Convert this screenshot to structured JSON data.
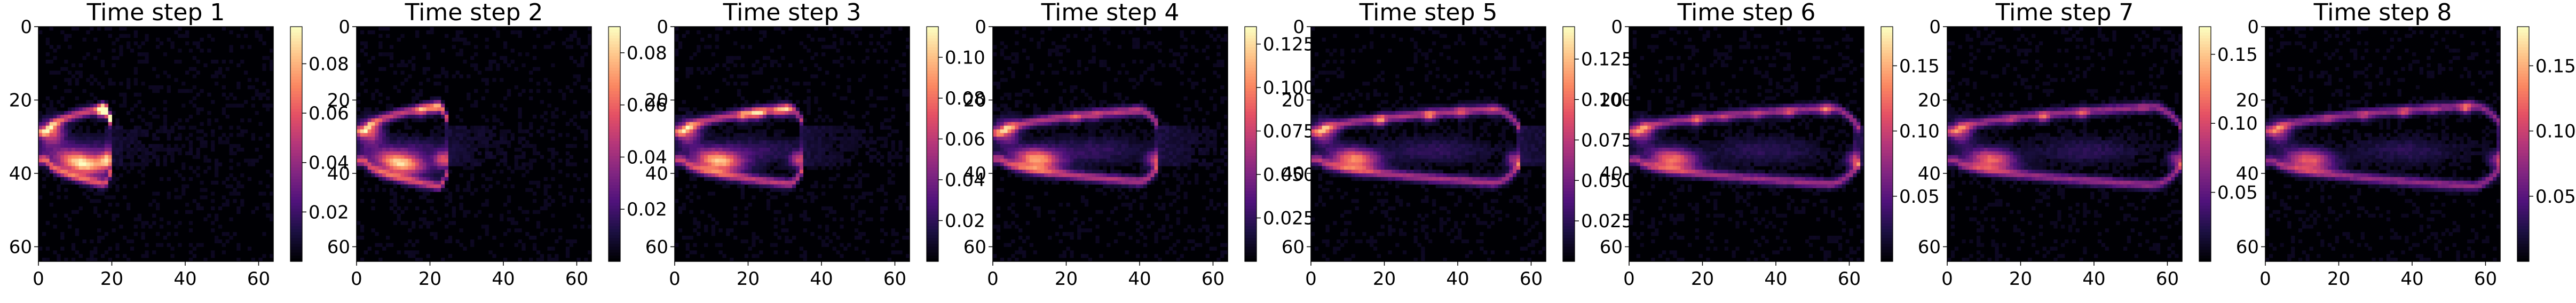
{
  "chart_data": [
    {
      "type": "heatmap",
      "title": "Time step 1",
      "grid_size": 64,
      "xlim": [
        0,
        64
      ],
      "ylim": [
        64,
        0
      ],
      "xticks": [
        "0",
        "20",
        "40",
        "60"
      ],
      "yticks": [
        "0",
        "20",
        "40",
        "60"
      ],
      "colorbar_range": [
        0.0,
        0.095
      ],
      "colorbar_ticks": [
        "0.02",
        "0.04",
        "0.06",
        "0.08"
      ],
      "plume": {
        "length": 0.28,
        "opening": 0.34,
        "intensity": 1.0,
        "tail": 0.12
      }
    },
    {
      "type": "heatmap",
      "title": "Time step 2",
      "grid_size": 64,
      "xlim": [
        0,
        64
      ],
      "ylim": [
        64,
        0
      ],
      "xticks": [
        "0",
        "20",
        "40",
        "60"
      ],
      "yticks": [
        "0",
        "20",
        "40",
        "60"
      ],
      "colorbar_range": [
        0.0,
        0.09
      ],
      "colorbar_ticks": [
        "0.02",
        "0.04",
        "0.06",
        "0.08"
      ],
      "plume": {
        "length": 0.36,
        "opening": 0.36,
        "intensity": 0.95,
        "tail": 0.14
      }
    },
    {
      "type": "heatmap",
      "title": "Time step 3",
      "grid_size": 64,
      "xlim": [
        0,
        64
      ],
      "ylim": [
        64,
        0
      ],
      "xticks": [
        "0",
        "20",
        "40",
        "60"
      ],
      "yticks": [
        "0",
        "20",
        "40",
        "60"
      ],
      "colorbar_range": [
        0.0,
        0.115
      ],
      "colorbar_ticks": [
        "0.02",
        "0.04",
        "0.06",
        "0.08",
        "0.10"
      ],
      "plume": {
        "length": 0.52,
        "opening": 0.34,
        "intensity": 0.9,
        "tail": 0.16
      }
    },
    {
      "type": "heatmap",
      "title": "Time step 4",
      "grid_size": 64,
      "xlim": [
        0,
        64
      ],
      "ylim": [
        64,
        0
      ],
      "xticks": [
        "0",
        "20",
        "40",
        "60"
      ],
      "yticks": [
        "0",
        "20",
        "40",
        "60"
      ],
      "colorbar_range": [
        0.0,
        0.135
      ],
      "colorbar_ticks": [
        "0.025",
        "0.050",
        "0.075",
        "0.100",
        "0.125"
      ],
      "plume": {
        "length": 0.68,
        "opening": 0.32,
        "intensity": 0.85,
        "tail": 0.18
      }
    },
    {
      "type": "heatmap",
      "title": "Time step 5",
      "grid_size": 64,
      "xlim": [
        0,
        64
      ],
      "ylim": [
        64,
        0
      ],
      "xticks": [
        "0",
        "20",
        "40",
        "60"
      ],
      "yticks": [
        "0",
        "20",
        "40",
        "60"
      ],
      "colorbar_range": [
        0.0,
        0.145
      ],
      "colorbar_ticks": [
        "0.025",
        "0.050",
        "0.075",
        "0.100",
        "0.125"
      ],
      "plume": {
        "length": 0.86,
        "opening": 0.33,
        "intensity": 0.8,
        "tail": 0.2
      }
    },
    {
      "type": "heatmap",
      "title": "Time step 6",
      "grid_size": 64,
      "xlim": [
        0,
        64
      ],
      "ylim": [
        64,
        0
      ],
      "xticks": [
        "0",
        "20",
        "40",
        "60"
      ],
      "yticks": [
        "0",
        "20",
        "40",
        "60"
      ],
      "colorbar_range": [
        0.0,
        0.18
      ],
      "colorbar_ticks": [
        "0.05",
        "0.10",
        "0.15"
      ],
      "plume": {
        "length": 0.95,
        "opening": 0.34,
        "intensity": 0.75,
        "tail": 0.22
      }
    },
    {
      "type": "heatmap",
      "title": "Time step 7",
      "grid_size": 64,
      "xlim": [
        0,
        64
      ],
      "ylim": [
        64,
        0
      ],
      "xticks": [
        "0",
        "20",
        "40",
        "60"
      ],
      "yticks": [
        "0",
        "20",
        "40",
        "60"
      ],
      "colorbar_range": [
        0.0,
        0.17
      ],
      "colorbar_ticks": [
        "0.05",
        "0.10",
        "0.15"
      ],
      "plume": {
        "length": 0.97,
        "opening": 0.35,
        "intensity": 0.72,
        "tail": 0.22
      }
    },
    {
      "type": "heatmap",
      "title": "Time step 8",
      "grid_size": 64,
      "xlim": [
        0,
        64
      ],
      "ylim": [
        64,
        0
      ],
      "xticks": [
        "0",
        "20",
        "40",
        "60"
      ],
      "yticks": [
        "0",
        "20",
        "40",
        "60"
      ],
      "colorbar_range": [
        0.0,
        0.18
      ],
      "colorbar_ticks": [
        "0.05",
        "0.10",
        "0.15"
      ],
      "plume": {
        "length": 0.98,
        "opening": 0.36,
        "intensity": 0.7,
        "tail": 0.24
      }
    }
  ],
  "colormap": [
    "#000004",
    "#1c1044",
    "#4f127b",
    "#812581",
    "#b5367a",
    "#e55064",
    "#fb8761",
    "#fec287",
    "#fcfdbf"
  ]
}
